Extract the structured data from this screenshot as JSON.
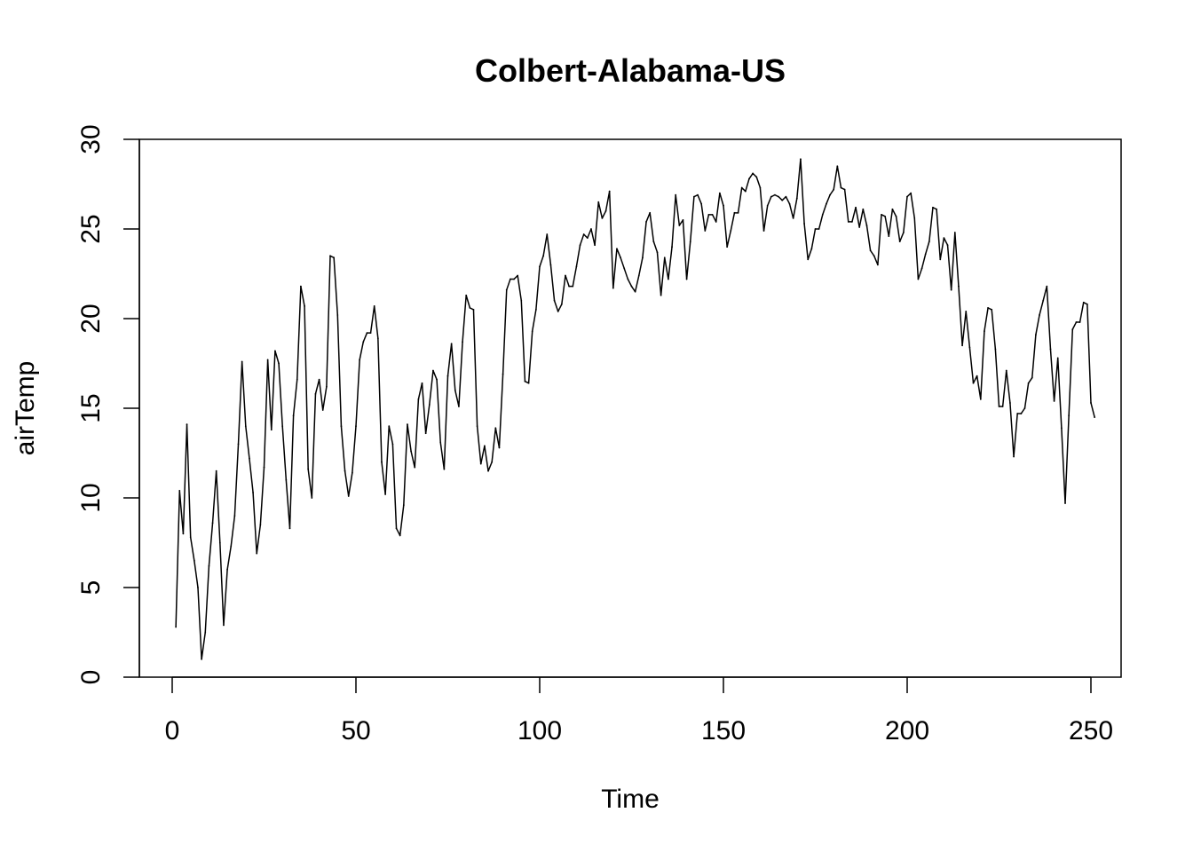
{
  "chart_data": {
    "type": "line",
    "title": "Colbert-Alabama-US",
    "xlabel": "Time",
    "ylabel": "airTemp",
    "xlim": [
      1,
      248
    ],
    "ylim": [
      0,
      30
    ],
    "x_ticks": [
      0,
      50,
      100,
      150,
      200,
      250
    ],
    "y_ticks": [
      0,
      5,
      10,
      15,
      20,
      25,
      30
    ],
    "grid": false,
    "line_color": "#000000",
    "series": [
      {
        "values": [
          2.8,
          10.4,
          8.0,
          14.1,
          7.8,
          6.5,
          5.0,
          1.0,
          2.5,
          6.2,
          8.6,
          11.5,
          7.5,
          2.9,
          6.0,
          7.3,
          9.0,
          13.0,
          17.6,
          14.0,
          12.2,
          10.3,
          6.9,
          8.5,
          11.7,
          17.7,
          13.8,
          18.2,
          17.5,
          14.0,
          11.0,
          8.3,
          14.6,
          16.6,
          21.8,
          20.7,
          11.6,
          10.0,
          15.8,
          16.6,
          14.9,
          16.2,
          23.5,
          23.4,
          20.2,
          14.0,
          11.5,
          10.1,
          11.4,
          14.0,
          17.7,
          18.7,
          19.2,
          19.2,
          20.7,
          18.9,
          12.0,
          10.2,
          14.0,
          13.0,
          8.3,
          7.9,
          9.6,
          14.1,
          12.6,
          11.7,
          15.5,
          16.4,
          13.6,
          15.2,
          17.1,
          16.6,
          13.1,
          11.6,
          16.8,
          18.6,
          16.0,
          15.1,
          18.7,
          21.3,
          20.6,
          20.5,
          14.0,
          11.9,
          12.9,
          11.5,
          12.0,
          13.9,
          12.8,
          16.9,
          21.6,
          22.2,
          22.2,
          22.4,
          21.0,
          16.5,
          16.4,
          19.3,
          20.5,
          22.9,
          23.5,
          24.7,
          23.0,
          21.0,
          20.4,
          20.8,
          22.4,
          21.8,
          21.8,
          22.9,
          24.1,
          24.7,
          24.5,
          25.0,
          24.1,
          26.5,
          25.6,
          26.0,
          27.1,
          21.7,
          23.9,
          23.4,
          22.8,
          22.2,
          21.8,
          21.5,
          22.4,
          23.4,
          25.4,
          25.9,
          24.3,
          23.7,
          21.3,
          23.4,
          22.2,
          24.0,
          26.9,
          25.2,
          25.5,
          22.2,
          24.3,
          26.8,
          26.9,
          26.4,
          24.9,
          25.8,
          25.8,
          25.4,
          27.0,
          26.3,
          24.0,
          24.9,
          25.9,
          25.9,
          27.3,
          27.1,
          27.8,
          28.1,
          27.9,
          27.3,
          24.9,
          26.3,
          26.8,
          26.9,
          26.8,
          26.6,
          26.8,
          26.4,
          25.6,
          26.7,
          28.9,
          25.3,
          23.3,
          23.9,
          25.0,
          25.0,
          25.8,
          26.4,
          26.9,
          27.2,
          28.5,
          27.3,
          27.2,
          25.4,
          25.4,
          26.2,
          25.1,
          26.1,
          25.2,
          23.8,
          23.5,
          23.0,
          25.8,
          25.7,
          24.6,
          26.1,
          25.7,
          24.3,
          24.8,
          26.8,
          27.0,
          25.6,
          22.2,
          22.8,
          23.6,
          24.3,
          26.2,
          26.1,
          23.3,
          24.5,
          24.1,
          21.6,
          24.8,
          21.8,
          18.5,
          20.4,
          18.4,
          16.4,
          16.8,
          15.5,
          19.3,
          20.6,
          20.5,
          18.3,
          15.1,
          15.1,
          17.1,
          15.3,
          12.3,
          14.7,
          14.7,
          15.0,
          16.4,
          16.7,
          19.1,
          20.2,
          21.0,
          21.8,
          18.3,
          15.4,
          17.8,
          13.9,
          9.7,
          14.6,
          19.4,
          19.8,
          19.8,
          20.9,
          20.8,
          15.3,
          14.5
        ]
      }
    ]
  }
}
